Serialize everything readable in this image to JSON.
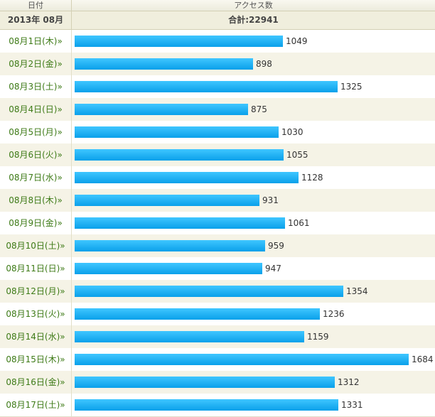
{
  "header": {
    "date_col": "日付",
    "access_col": "アクセス数"
  },
  "summary": {
    "month": "2013年 08月",
    "total": "合計:22941"
  },
  "colors": {
    "bar": "#1ab0f5",
    "date_text": "#3d7a16"
  },
  "chart_data": {
    "type": "bar",
    "categories": [
      "08月1日(木)»",
      "08月2日(金)»",
      "08月3日(土)»",
      "08月4日(日)»",
      "08月5日(月)»",
      "08月6日(火)»",
      "08月7日(水)»",
      "08月8日(木)»",
      "08月9日(金)»",
      "08月10日(土)»",
      "08月11日(日)»",
      "08月12日(月)»",
      "08月13日(火)»",
      "08月14日(水)»",
      "08月15日(木)»",
      "08月16日(金)»",
      "08月17日(土)»"
    ],
    "values": [
      1049,
      898,
      1325,
      875,
      1030,
      1055,
      1128,
      931,
      1061,
      959,
      947,
      1354,
      1236,
      1159,
      1684,
      1312,
      1331
    ]
  }
}
